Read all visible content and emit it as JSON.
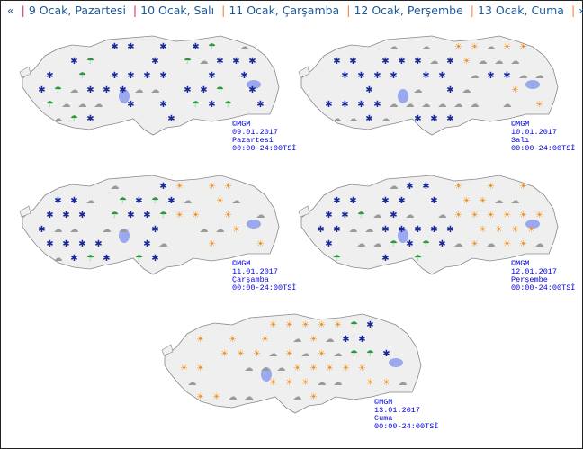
{
  "nav": {
    "prev": "«",
    "next": "»",
    "days": [
      {
        "label": "9 Ocak, Pazartesi",
        "sep_color": "#e0206a"
      },
      {
        "label": "10 Ocak, Salı",
        "sep_color": "#e0206a"
      },
      {
        "label": "11 Ocak, Çarşamba",
        "sep_color": "#f08040"
      },
      {
        "label": "12 Ocak, Perşembe",
        "sep_color": "#f08040"
      },
      {
        "label": "13 Ocak, Cuma",
        "sep_color": "#f08040"
      }
    ]
  },
  "maps": [
    {
      "copyright": "©MGM",
      "date": "09.01.2017",
      "day": "Pazartesi",
      "hours": "00:00-24:00TSİ",
      "weather": "snow"
    },
    {
      "copyright": "©MGM",
      "date": "10.01.2017",
      "day": "Salı",
      "hours": "00:00-24:00TSİ",
      "weather": "mixed-snow"
    },
    {
      "copyright": "©MGM",
      "date": "11.01.2017",
      "day": "Çarşamba",
      "hours": "00:00-24:00TSİ",
      "weather": "snow-west-sun-east"
    },
    {
      "copyright": "©MGM",
      "date": "12.01.2017",
      "day": "Perşembe",
      "hours": "00:00-24:00TSİ",
      "weather": "snow-west-sun-east"
    },
    {
      "copyright": "©MGM",
      "date": "13.01.2017",
      "day": "Cuma",
      "hours": "00:00-24:00TSİ",
      "weather": "sunny"
    }
  ],
  "colors": {
    "link": "#1a5a9a",
    "label": "#0000e0",
    "land": "#efefef",
    "lake": "#9aa8ee",
    "snow": "#1a2a9a",
    "sun": "#f09020",
    "rain": "#2a9a3a",
    "cloud": "#9a9a9a"
  }
}
